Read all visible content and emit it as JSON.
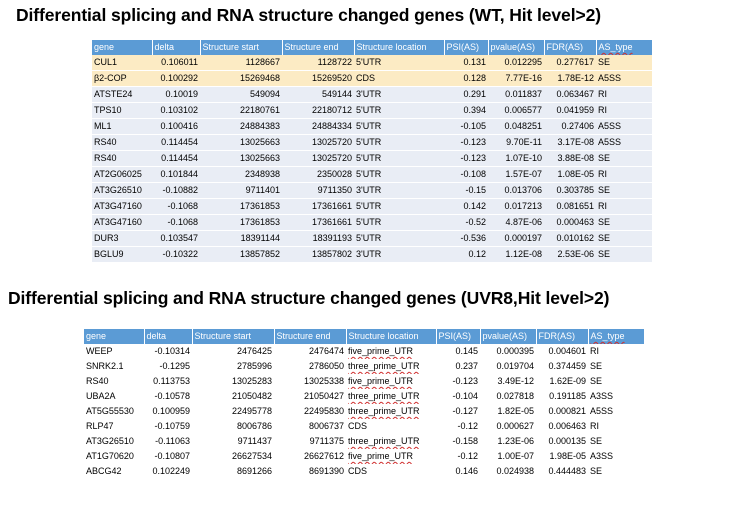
{
  "title1": "Differential splicing and RNA structure changed genes (WT, Hit level>2)",
  "title2": "Differential splicing and RNA structure changed genes (UVR8,Hit level>2)",
  "columns": [
    "gene",
    "delta",
    "Structure start",
    "Structure end",
    "Structure location",
    "PSI(AS)",
    "pvalue(AS)",
    "FDR(AS)",
    "AS_type"
  ],
  "colors": {
    "header": "#5b9bd5",
    "row": "#e9edf5",
    "highlight": "#fcebc4"
  },
  "table1": [
    [
      "CUL1",
      "0.106011",
      "1128667",
      "1128722",
      "5'UTR",
      "0.131",
      "0.012295",
      "0.277617",
      "SE"
    ],
    [
      "β2-COP",
      "0.100292",
      "15269468",
      "15269520",
      "CDS",
      "0.128",
      "7.77E-16",
      "1.78E-12",
      "A5SS"
    ],
    [
      "ATSTE24",
      "0.10019",
      "549094",
      "549144",
      "3'UTR",
      "0.291",
      "0.011837",
      "0.063467",
      "RI"
    ],
    [
      "TPS10",
      "0.103102",
      "22180761",
      "22180712",
      "5'UTR",
      "0.394",
      "0.006577",
      "0.041959",
      "RI"
    ],
    [
      "ML1",
      "0.100416",
      "24884383",
      "24884334",
      "5'UTR",
      "-0.105",
      "0.048251",
      "0.27406",
      "A5SS"
    ],
    [
      "RS40",
      "0.114454",
      "13025663",
      "13025720",
      "5'UTR",
      "-0.123",
      "9.70E-11",
      "3.17E-08",
      "A5SS"
    ],
    [
      "RS40",
      "0.114454",
      "13025663",
      "13025720",
      "5'UTR",
      "-0.123",
      "1.07E-10",
      "3.88E-08",
      "SE"
    ],
    [
      "AT2G06025",
      "0.101844",
      "2348938",
      "2350028",
      "5'UTR",
      "-0.108",
      "1.57E-07",
      "1.08E-05",
      "RI"
    ],
    [
      "AT3G26510",
      "-0.10882",
      "9711401",
      "9711350",
      "3'UTR",
      "-0.15",
      "0.013706",
      "0.303785",
      "SE"
    ],
    [
      "AT3G47160",
      "-0.1068",
      "17361853",
      "17361661",
      "5'UTR",
      "0.142",
      "0.017213",
      "0.081651",
      "RI"
    ],
    [
      "AT3G47160",
      "-0.1068",
      "17361853",
      "17361661",
      "5'UTR",
      "-0.52",
      "4.87E-06",
      "0.000463",
      "SE"
    ],
    [
      "DUR3",
      "0.103547",
      "18391144",
      "18391193",
      "5'UTR",
      "-0.536",
      "0.000197",
      "0.010162",
      "SE"
    ],
    [
      "BGLU9",
      "-0.10322",
      "13857852",
      "13857802",
      "3'UTR",
      "0.12",
      "1.12E-08",
      "2.53E-06",
      "SE"
    ]
  ],
  "table2": [
    [
      "WEEP",
      "-0.10314",
      "2476425",
      "2476474",
      "five_prime_UTR",
      "0.145",
      "0.000395",
      "0.004601",
      "RI"
    ],
    [
      "SNRK2.1",
      "-0.1295",
      "2785996",
      "2786050",
      "three_prime_UTR",
      "0.237",
      "0.019704",
      "0.374459",
      "SE"
    ],
    [
      "RS40",
      "0.113753",
      "13025283",
      "13025338",
      "five_prime_UTR",
      "-0.123",
      "3.49E-12",
      "1.62E-09",
      "SE"
    ],
    [
      "UBA2A",
      "-0.10578",
      "21050482",
      "21050427",
      "three_prime_UTR",
      "-0.104",
      "0.027818",
      "0.191185",
      "A3SS"
    ],
    [
      "AT5G55530",
      "0.100959",
      "22495778",
      "22495830",
      "three_prime_UTR",
      "-0.127",
      "1.82E-05",
      "0.000821",
      "A5SS"
    ],
    [
      "RLP47",
      "-0.10759",
      "8006786",
      "8006737",
      "CDS",
      "-0.12",
      "0.000627",
      "0.006463",
      "RI"
    ],
    [
      "AT3G26510",
      "-0.11063",
      "9711437",
      "9711375",
      "three_prime_UTR",
      "-0.158",
      "1.23E-06",
      "0.000135",
      "SE"
    ],
    [
      "AT1G70620",
      "-0.10807",
      "26627534",
      "26627612",
      "five_prime_UTR",
      "-0.12",
      "1.00E-07",
      "1.98E-05",
      "A3SS"
    ],
    [
      "ABCG42",
      "0.102249",
      "8691266",
      "8691390",
      "CDS",
      "0.146",
      "0.024938",
      "0.444483",
      "SE"
    ]
  ]
}
